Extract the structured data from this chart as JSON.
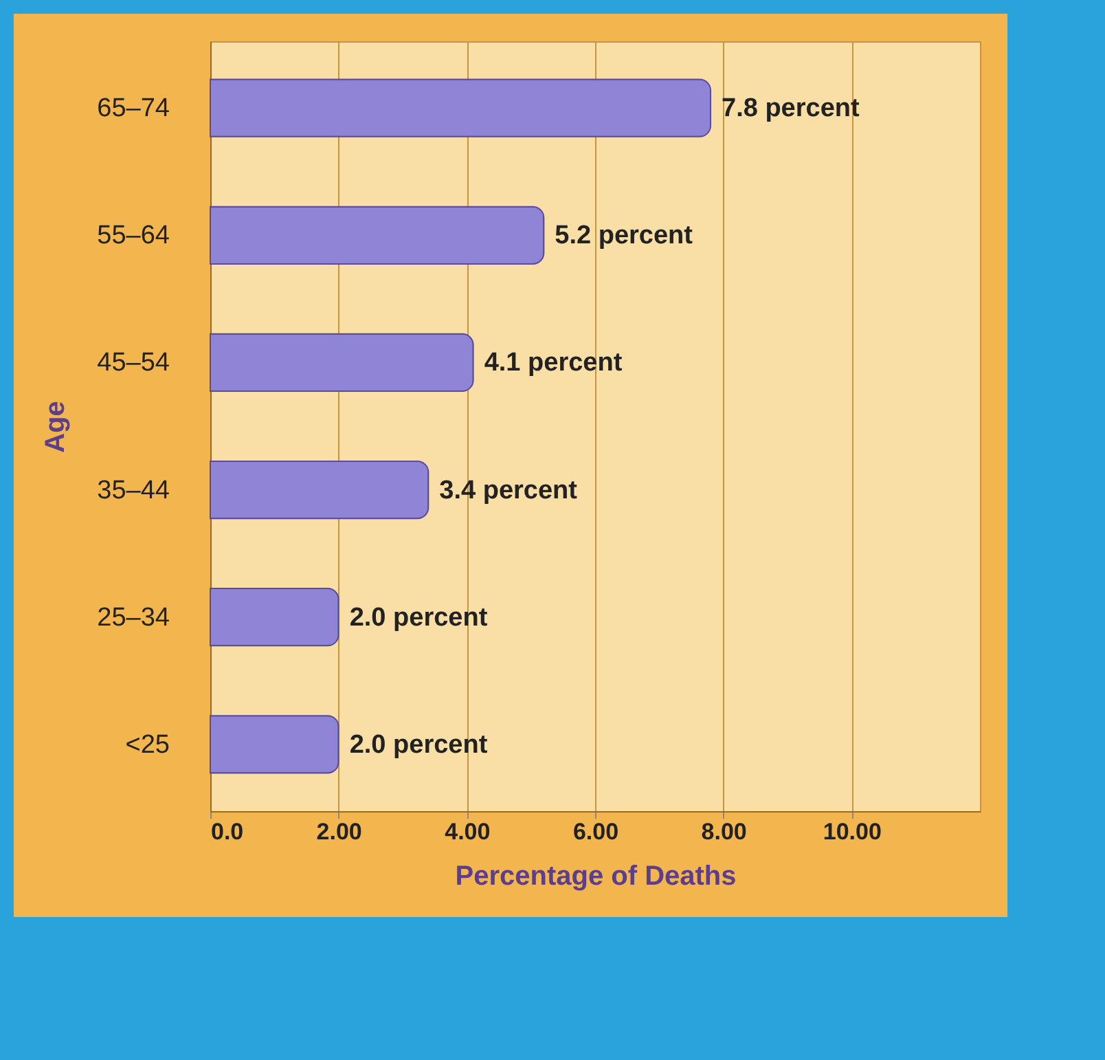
{
  "chart_data": {
    "type": "bar",
    "orientation": "horizontal",
    "xlabel": "Percentage of Deaths",
    "ylabel": "Age",
    "categories": [
      "65–74",
      "55–64",
      "45–54",
      "35–44",
      "25–34",
      "<25"
    ],
    "values": [
      7.8,
      5.2,
      4.1,
      3.4,
      2.0,
      2.0
    ],
    "value_labels": [
      "7.8 percent",
      "5.2 percent",
      "4.1 percent",
      "3.4 percent",
      "2.0 percent",
      "2.0 percent"
    ],
    "color": "#8f84d6",
    "xlim": [
      0,
      12
    ],
    "xticks": [
      {
        "value": 0,
        "label": "0.0"
      },
      {
        "value": 2,
        "label": "2.00"
      },
      {
        "value": 4,
        "label": "4.00"
      },
      {
        "value": 6,
        "label": "6.00"
      },
      {
        "value": 8,
        "label": "8.00"
      },
      {
        "value": 10,
        "label": "10.00"
      }
    ],
    "grid": "x"
  }
}
